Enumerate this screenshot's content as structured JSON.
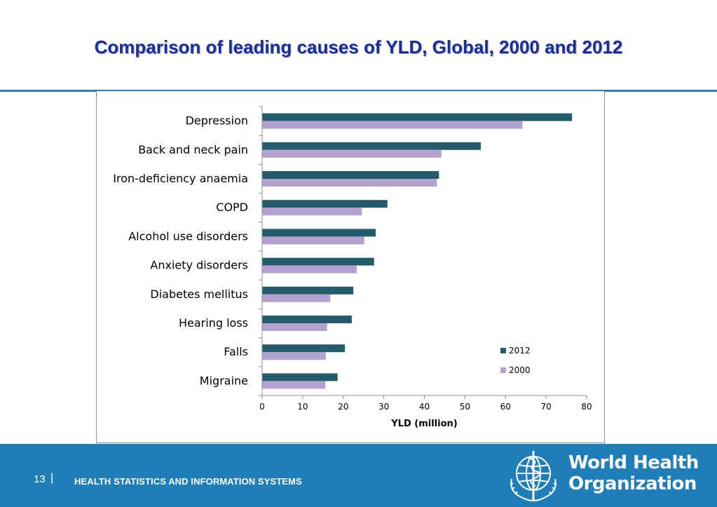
{
  "slide": {
    "title": "Comparison of leading causes of YLD, Global, 2000 and 2012",
    "page_number": "13",
    "separator": "|",
    "footer_text": "HEALTH STATISTICS AND INFORMATION SYSTEMS",
    "org_name_line1": "World Health",
    "org_name_line2": "Organization"
  },
  "colors": {
    "series_2012": "#245c6b",
    "series_2000": "#b3a2cf",
    "title": "#1a2e99",
    "footer_bg": "#1f7db8"
  },
  "chart_data": {
    "type": "bar",
    "orientation": "horizontal",
    "categories": [
      "Depression",
      "Back and neck pain",
      "Iron-deficiency anaemia",
      "COPD",
      "Alcohol use disorders",
      "Anxiety disorders",
      "Diabetes mellitus",
      "Hearing loss",
      "Falls",
      "Migraine"
    ],
    "series": [
      {
        "name": "2012",
        "values": [
          76.4,
          53.9,
          43.6,
          30.9,
          28.0,
          27.6,
          22.5,
          22.1,
          20.4,
          18.6
        ]
      },
      {
        "name": "2000",
        "values": [
          64.2,
          44.2,
          43.1,
          24.6,
          25.2,
          23.3,
          16.8,
          16.0,
          15.7,
          15.6
        ]
      }
    ],
    "xlabel": "YLD (million)",
    "ylabel": "",
    "xlim": [
      0,
      80
    ],
    "xticks": [
      0,
      10,
      20,
      30,
      40,
      50,
      60,
      70,
      80
    ],
    "grid": false,
    "legend_position": "bottom-right"
  }
}
